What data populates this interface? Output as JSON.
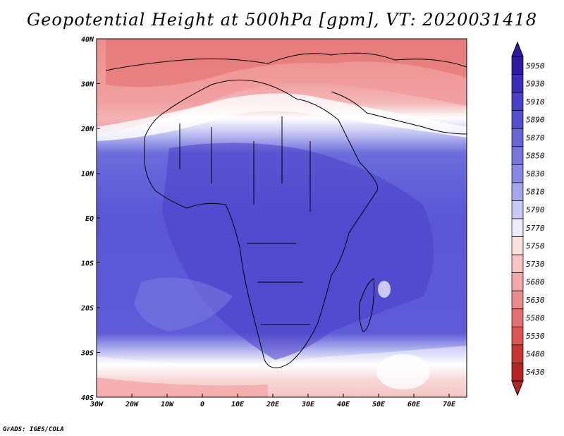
{
  "title": "Geopotential Height at 500hPa [gpm], VT: 2020031418",
  "credit": "GrADS: IGES/COLA",
  "lat_labels": [
    "40N",
    "30N",
    "20N",
    "10N",
    "EQ",
    "10S",
    "20S",
    "30S",
    "40S"
  ],
  "lon_labels": [
    "30W",
    "20W",
    "10W",
    "0",
    "10E",
    "20E",
    "30E",
    "40E",
    "50E",
    "60E",
    "70E"
  ],
  "legend": {
    "levels": [
      "5950",
      "5930",
      "5910",
      "5890",
      "5870",
      "5850",
      "5830",
      "5810",
      "5790",
      "5770",
      "5750",
      "5730",
      "5680",
      "5630",
      "5580",
      "5530",
      "5480",
      "5430"
    ],
    "colors": [
      "#2c1aa0",
      "#3d2cb8",
      "#4a3fc8",
      "#5650d0",
      "#6666d8",
      "#7777df",
      "#8888e6",
      "#a6a6ee",
      "#c8c8f6",
      "#ececfc",
      "#fde0e0",
      "#f8c4c4",
      "#f2a8a8",
      "#ec8c8c",
      "#e47070",
      "#dc5454",
      "#cc3434",
      "#b82222"
    ]
  },
  "colors": {
    "ocean_fill": "#5b55d6",
    "north_warm": "#ef9a9a",
    "north_hot": "#e06a6a",
    "south_cool": "#f4b0b0"
  }
}
